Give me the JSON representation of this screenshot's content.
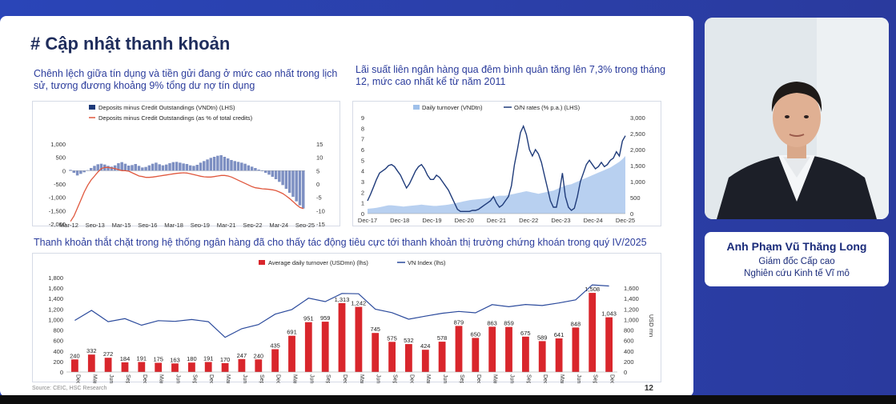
{
  "slide": {
    "title": "# Cập nhật thanh khoản",
    "caption1": "Chênh lệch giữa tín dụng và tiền gửi đang ở mức cao nhất trong lịch sử, tương đương khoảng 9% tổng dư nợ tín dụng",
    "caption2": "Lãi suất liên ngân hàng qua đêm bình quân tăng lên 7,3% trong tháng 12, mức cao nhất kể từ năm 2011",
    "caption3": "Thanh khoản thắt chặt trong hệ thống ngân hàng đã cho thấy tác động tiêu cực tới thanh khoản thị trường chứng khoán trong quý IV/2025",
    "source": "Source: CEIC, HSC Research",
    "page_number": "12"
  },
  "presenter": {
    "name": "Anh Phạm Vũ Thăng Long",
    "title_line1": "Giám đốc Cấp cao",
    "title_line2": "Nghiên cứu Kinh tế Vĩ mô"
  },
  "chart_data": [
    {
      "type": "bar",
      "legend": [
        "Deposits minus Credit Outstandings (VNDtn) (LHS)",
        "Deposits minus Credit Outstandings (as % of total credits)"
      ],
      "x_ticks": [
        "Mar-12",
        "Sep-13",
        "Mar-15",
        "Sep-16",
        "Mar-18",
        "Sep-19",
        "Mar-21",
        "Sep-22",
        "Mar-24",
        "Sep-25"
      ],
      "y_left_ticks": [
        "1,000",
        "500",
        "0",
        "-500",
        "-1,000",
        "-1,500",
        "-2,000"
      ],
      "y_right_ticks": [
        "15",
        "10",
        "5",
        "0",
        "-5",
        "-10",
        "-15"
      ],
      "ylim_left": [
        -2000,
        1000
      ],
      "ylim_right": [
        -15,
        15
      ],
      "bars": [
        30,
        -80,
        -180,
        -120,
        -60,
        20,
        100,
        180,
        240,
        260,
        230,
        180,
        150,
        200,
        280,
        320,
        260,
        190,
        210,
        250,
        180,
        120,
        140,
        200,
        260,
        300,
        240,
        200,
        230,
        280,
        320,
        330,
        300,
        270,
        250,
        200,
        180,
        220,
        300,
        360,
        420,
        480,
        520,
        560,
        580,
        520,
        460,
        400,
        360,
        330,
        300,
        260,
        200,
        150,
        100,
        40,
        -20,
        -80,
        -150,
        -230,
        -320,
        -420,
        -540,
        -680,
        -830,
        -980,
        -1150,
        -1300,
        -1420
      ],
      "pct": [
        -14,
        -12,
        -9,
        -6,
        -3,
        -0.5,
        1.5,
        3,
        4.5,
        5.8,
        6.2,
        6.2,
        6,
        5.8,
        5.4,
        5,
        5,
        4.8,
        4.2,
        3.6,
        3,
        2.8,
        2.5,
        2.5,
        2.6,
        2.8,
        3,
        3.2,
        3.4,
        3.6,
        3.8,
        4,
        4.1,
        4.2,
        4.1,
        3.8,
        3.5,
        3.2,
        2.9,
        2.7,
        2.6,
        2.6,
        2.8,
        3,
        3.2,
        3.2,
        3,
        2.6,
        2,
        1.4,
        0.8,
        0.2,
        -0.4,
        -1,
        -1.4,
        -1.6,
        -1.8,
        -1.9,
        -2,
        -2.2,
        -2.5,
        -3,
        -3.6,
        -4.5,
        -5.5,
        -6.6,
        -7.8,
        -8.8,
        -9.2
      ]
    },
    {
      "type": "area",
      "legend": [
        "Daily turnover (VNDtn)",
        "O/N rates (% p.a.) (LHS)"
      ],
      "x_ticks": [
        "Dec-17",
        "Dec-18",
        "Dec-19",
        "Dec-20",
        "Dec-21",
        "Dec-22",
        "Dec-23",
        "Dec-24",
        "Dec-25"
      ],
      "y_left_ticks": [
        "9",
        "8",
        "7",
        "6",
        "5",
        "4",
        "3",
        "2",
        "1",
        "0"
      ],
      "y_right_ticks": [
        "3,000",
        "2,500",
        "2,000",
        "1,500",
        "1,000",
        "500",
        "0"
      ],
      "ylim_left": [
        0,
        9
      ],
      "ylim_right": [
        0,
        3000
      ],
      "rate": [
        1.2,
        1.8,
        2.5,
        3.2,
        3.8,
        4.0,
        4.2,
        4.5,
        4.6,
        4.4,
        4.0,
        3.6,
        3.0,
        2.4,
        2.8,
        3.4,
        4.0,
        4.4,
        4.6,
        4.2,
        3.6,
        3.2,
        3.2,
        3.6,
        3.4,
        3.0,
        2.6,
        2.2,
        1.6,
        1.0,
        0.4,
        0.2,
        0.2,
        0.2,
        0.2,
        0.3,
        0.3,
        0.4,
        0.6,
        0.8,
        1.0,
        1.2,
        1.6,
        1.0,
        0.6,
        0.8,
        1.2,
        1.6,
        2.6,
        4.6,
        6.0,
        7.6,
        8.2,
        7.4,
        6.0,
        5.4,
        6.0,
        5.6,
        4.8,
        3.6,
        2.4,
        1.2,
        0.6,
        0.6,
        2.0,
        3.8,
        1.6,
        0.6,
        0.3,
        0.5,
        1.6,
        3.0,
        3.8,
        4.6,
        5.0,
        4.6,
        4.2,
        4.4,
        4.8,
        4.4,
        4.6,
        5.0,
        5.2,
        5.8,
        5.4,
        6.8,
        7.3
      ],
      "turnover": [
        150,
        160,
        170,
        180,
        200,
        220,
        240,
        260,
        260,
        250,
        240,
        230,
        220,
        230,
        240,
        250,
        260,
        270,
        280,
        270,
        260,
        250,
        240,
        240,
        250,
        260,
        270,
        280,
        300,
        320,
        340,
        360,
        380,
        400,
        420,
        430,
        440,
        450,
        460,
        470,
        480,
        500,
        520,
        540,
        560,
        560,
        560,
        580,
        600,
        620,
        640,
        660,
        680,
        700,
        680,
        660,
        640,
        620,
        640,
        660,
        680,
        700,
        720,
        760,
        800,
        840,
        880,
        900,
        920,
        960,
        1000,
        1040,
        1080,
        1120,
        1160,
        1200,
        1240,
        1280,
        1320,
        1360,
        1400,
        1440,
        1500,
        1560,
        1620,
        1700,
        1800
      ]
    },
    {
      "type": "bar",
      "legend": [
        "Average daily turnover (USDmn) (lhs)",
        "VN Index (lhs)"
      ],
      "categories": [
        "Dec-17",
        "Mar-18",
        "Jun-18",
        "Sep-18",
        "Dec-18",
        "Mar-19",
        "Jun-19",
        "Sep-19",
        "Dec-19",
        "Mar-20",
        "Jun-20",
        "Sep-20",
        "Dec-20",
        "Mar-21",
        "Jun-21",
        "Sep-21",
        "Dec-21",
        "Mar-22",
        "Jun-22",
        "Sep-22",
        "Dec-22",
        "Mar-23",
        "Jun-23",
        "Sep-23",
        "Dec-23",
        "Mar-24",
        "Jun-24",
        "Sep-24",
        "Dec-24",
        "Mar-25",
        "Jun-25",
        "Sep-25",
        "Dec-25"
      ],
      "values": [
        240,
        332,
        272,
        184,
        191,
        175,
        163,
        180,
        191,
        170,
        247,
        240,
        435,
        691,
        951,
        959,
        1313,
        1242,
        745,
        575,
        532,
        424,
        578,
        879,
        650,
        863,
        859,
        675,
        589,
        641,
        848,
        1508,
        1043
      ],
      "value_labels": [
        "240",
        "332",
        "272",
        "184",
        "191",
        "175",
        "163",
        "180",
        "191",
        "170",
        "247",
        "240",
        "435",
        "691",
        "951",
        "959",
        "1,313",
        "1,242",
        "745",
        "575",
        "532",
        "424",
        "578",
        "879",
        "650",
        "863",
        "859",
        "675",
        "589",
        "641",
        "848",
        "1,508",
        "1,043"
      ],
      "vnindex": [
        984,
        1174,
        960,
        1017,
        892,
        980,
        965,
        1000,
        960,
        660,
        825,
        905,
        1103,
        1191,
        1408,
        1342,
        1498,
        1492,
        1197,
        1132,
        1007,
        1064,
        1120,
        1154,
        1129,
        1284,
        1245,
        1288,
        1267,
        1317,
        1376,
        1661,
        1640
      ],
      "y_left_ticks": [
        "1,800",
        "1,600",
        "1,400",
        "1,200",
        "1,000",
        "800",
        "600",
        "400",
        "200",
        "0"
      ],
      "y_right_ticks": [
        "1,600",
        "1,400",
        "1,200",
        "1,000",
        "800",
        "600",
        "400",
        "200",
        "0"
      ],
      "y_right_label": "USD mn",
      "ylim_left": [
        0,
        1800
      ],
      "ylim_right": [
        0,
        1800
      ]
    }
  ]
}
